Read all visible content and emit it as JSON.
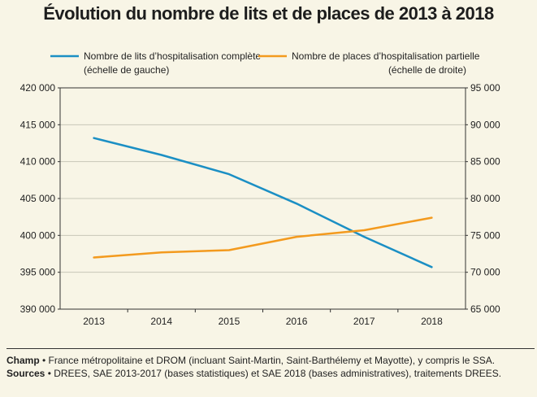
{
  "title": "Évolution du nombre de lits et de places de 2013 à 2018",
  "chart_data": {
    "type": "line",
    "x": [
      "2013",
      "2014",
      "2015",
      "2016",
      "2017",
      "2018"
    ],
    "series": [
      {
        "name": "Nombre de lits d’hospitalisation complète",
        "axis_note": "(échelle de gauche)",
        "axis": "left",
        "color": "#1b8fc4",
        "values": [
          413200,
          410900,
          408300,
          404300,
          399800,
          395700
        ]
      },
      {
        "name": "Nombre de places d’hospitalisation partielle",
        "axis_note": "(échelle de droite)",
        "axis": "right",
        "color": "#f39a1e",
        "values": [
          72000,
          72700,
          73000,
          74800,
          75700,
          77400
        ]
      }
    ],
    "left_axis": {
      "min": 390000,
      "max": 420000,
      "ticks": [
        "390 000",
        "395 000",
        "400 000",
        "405 000",
        "410 000",
        "415 000",
        "420 000"
      ]
    },
    "right_axis": {
      "min": 65000,
      "max": 95000,
      "ticks": [
        "65 000",
        "70 000",
        "75 000",
        "80 000",
        "85 000",
        "90 000",
        "95 000"
      ]
    },
    "grid": true,
    "legend": "top"
  },
  "footer": {
    "champ_label": "Champ",
    "champ_text": " • France métropolitaine et DROM (incluant Saint-Martin, Saint-Barthélemy et Mayotte), y compris le SSA.",
    "sources_label": "Sources",
    "sources_text": " • DREES, SAE 2013-2017 (bases statistiques) et SAE 2018 (bases administratives), traitements DREES."
  }
}
